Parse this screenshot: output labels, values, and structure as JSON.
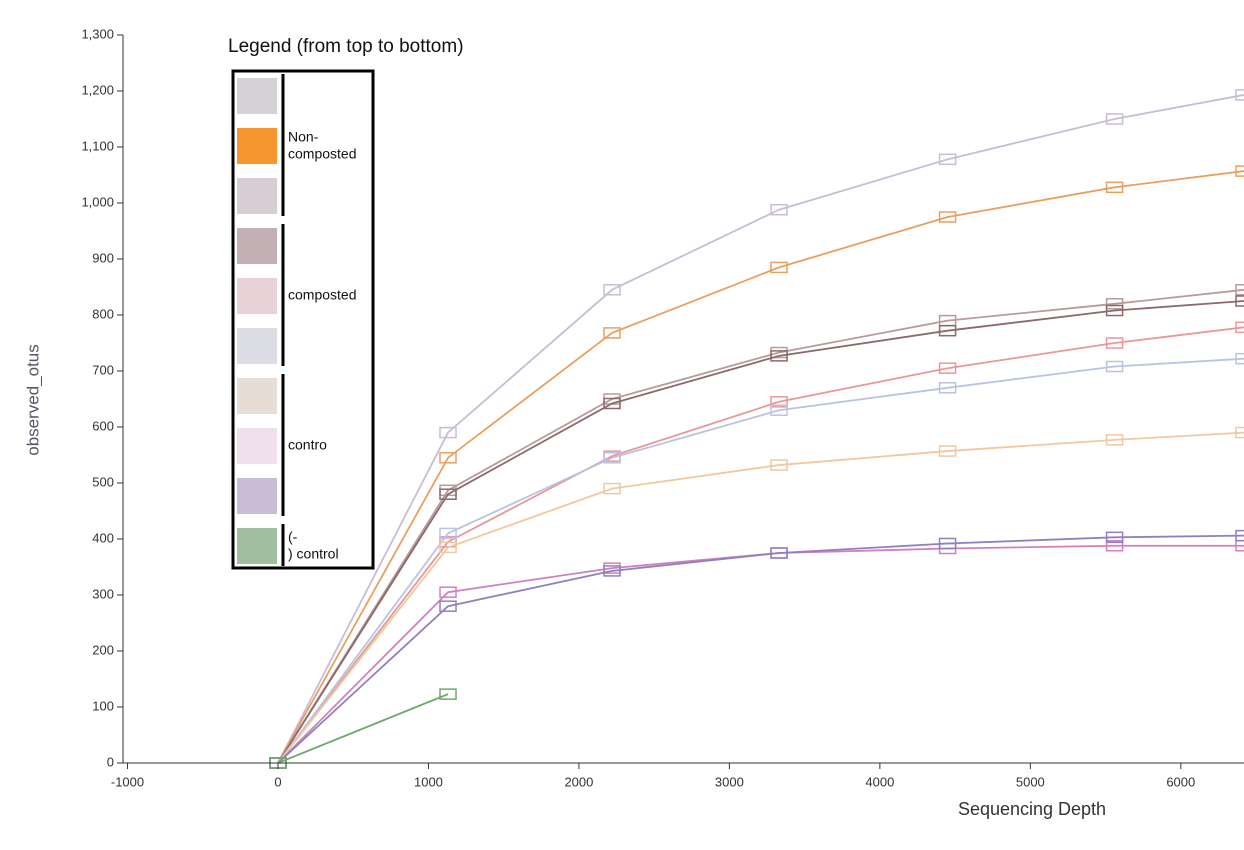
{
  "chart_data": {
    "type": "line",
    "x_label": "Sequencing Depth",
    "y_label": "observed_otus",
    "x": [
      0,
      1130,
      2220,
      3330,
      4450,
      5560,
      6420
    ],
    "series": [
      {
        "color": "#c8bcd6",
        "values": [
          0,
          590,
          845,
          988,
          1078,
          1150,
          1193
        ]
      },
      {
        "color": "#e8a060",
        "values": [
          0,
          545,
          768,
          885,
          975,
          1028,
          1057
        ]
      },
      {
        "color": "#b89a9a",
        "values": [
          0,
          487,
          650,
          733,
          790,
          820,
          845
        ]
      },
      {
        "color": "#8a6a6a",
        "values": [
          0,
          480,
          642,
          727,
          772,
          808,
          825
        ]
      },
      {
        "color": "#e89898",
        "values": [
          0,
          395,
          548,
          645,
          705,
          750,
          778
        ]
      },
      {
        "color": "#b8c4e0",
        "values": [
          0,
          410,
          545,
          630,
          670,
          708,
          722
        ]
      },
      {
        "color": "#f0c8a0",
        "values": [
          0,
          385,
          490,
          532,
          557,
          577,
          590
        ]
      },
      {
        "color": "#d080c0",
        "values": [
          0,
          305,
          348,
          375,
          383,
          388,
          388
        ]
      },
      {
        "color": "#9080c0",
        "values": [
          0,
          280,
          343,
          375,
          392,
          403,
          406
        ]
      },
      {
        "color": "#70a870",
        "values": [
          0,
          123,
          null,
          null,
          null,
          null,
          null
        ]
      }
    ],
    "xlim": [
      -1030,
      6420
    ],
    "ylim": [
      0,
      1300
    ],
    "xticks": [
      -1000,
      0,
      1000,
      2000,
      3000,
      4000,
      5000,
      6000
    ],
    "yticks": [
      0,
      100,
      200,
      300,
      400,
      500,
      600,
      700,
      800,
      900,
      {
        "value": 1000,
        "label": "1,000"
      },
      {
        "value": 1100,
        "label": "1,100"
      },
      {
        "value": 1200,
        "label": "1,200"
      },
      {
        "value": 1300,
        "label": "1,300"
      }
    ],
    "legend": {
      "title": "Legend (from top to bottom)",
      "groups": [
        {
          "label": "Non-composted",
          "colors": [
            "#d4d2d6",
            "#f5962f",
            "#d8cdd2"
          ]
        },
        {
          "label": "composted",
          "colors": [
            "#c2b0b5",
            "#e8d2d8",
            "#dcdde4"
          ]
        },
        {
          "label": "contro",
          "colors": [
            "#e8ddd5",
            "#f0dfec",
            "#c9bcd4"
          ]
        },
        {
          "label": "(-) control",
          "colors": [
            "#9fbf9f"
          ]
        }
      ]
    }
  }
}
